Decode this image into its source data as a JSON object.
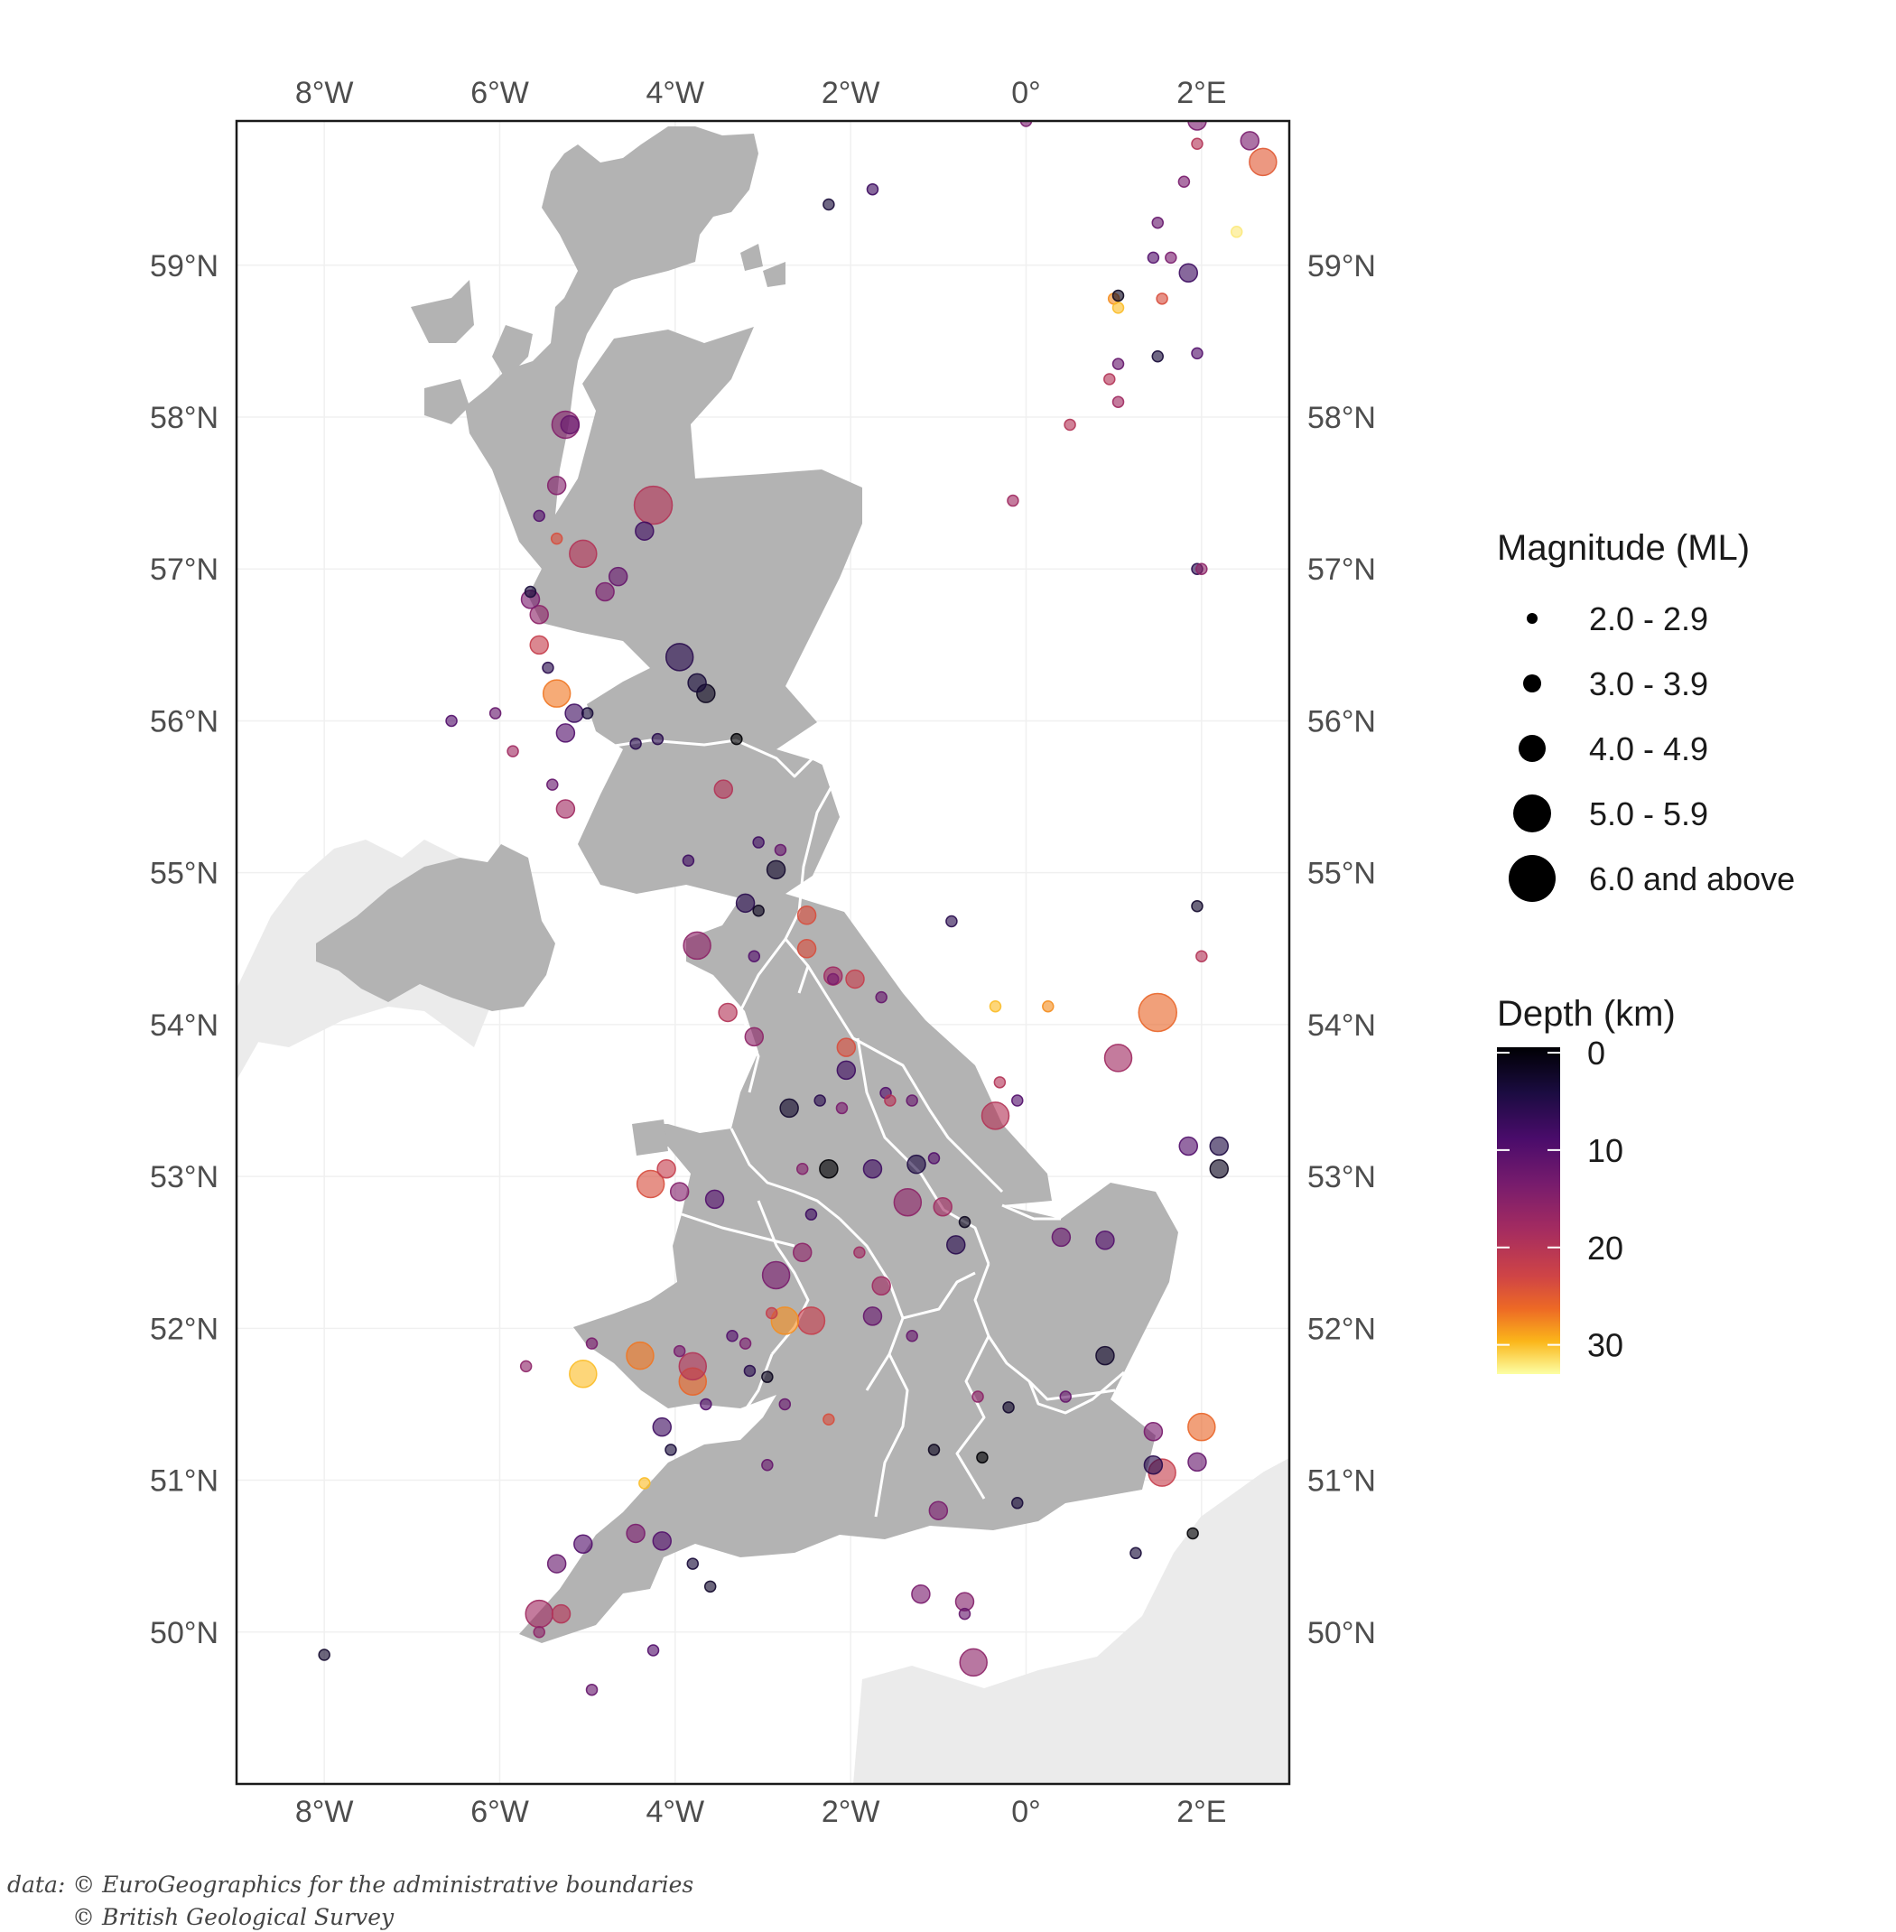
{
  "map": {
    "x_range": [
      -9.0,
      3.0
    ],
    "y_range": [
      49.0,
      59.95
    ],
    "x_ticks": [
      {
        "value": -8,
        "label": "8°W"
      },
      {
        "value": -6,
        "label": "6°W"
      },
      {
        "value": -4,
        "label": "4°W"
      },
      {
        "value": -2,
        "label": "2°W"
      },
      {
        "value": 0,
        "label": "0°"
      },
      {
        "value": 2,
        "label": "2°E"
      }
    ],
    "y_ticks": [
      {
        "value": 50,
        "label": "50°N"
      },
      {
        "value": 51,
        "label": "51°N"
      },
      {
        "value": 52,
        "label": "52°N"
      },
      {
        "value": 53,
        "label": "53°N"
      },
      {
        "value": 54,
        "label": "54°N"
      },
      {
        "value": 55,
        "label": "55°N"
      },
      {
        "value": 56,
        "label": "56°N"
      },
      {
        "value": 57,
        "label": "57°N"
      },
      {
        "value": 58,
        "label": "58°N"
      },
      {
        "value": 59,
        "label": "59°N"
      }
    ],
    "colors": {
      "uk_land": "#b3b3b3",
      "ireland_land": "#e8e8e8",
      "region_border": "#ffffff",
      "panel_border": "#1a1a1a",
      "grid": "#f0f0f0"
    }
  },
  "legend": {
    "magnitude_title": "Magnitude (ML)",
    "magnitude_classes": [
      "2.0 - 2.9",
      "3.0 - 3.9",
      "4.0 - 4.9",
      "5.0 - 5.9",
      "6.0 and above"
    ],
    "depth_title": "Depth (km)",
    "depth_ticks": [
      "0",
      "10",
      "20",
      "30"
    ],
    "depth_range": [
      0,
      33
    ],
    "colormap": "inferno"
  },
  "credits": {
    "line1": "data: © EuroGeographics for the administrative boundaries",
    "line2": "© British Geological Survey"
  },
  "chart_data": {
    "type": "scatter",
    "x_field": "longitude",
    "y_field": "latitude",
    "size_field": "magnitude_class",
    "color_field": "depth_km",
    "points": [
      [
        -5.25,
        57.95,
        3,
        15
      ],
      [
        -4.25,
        57.42,
        4,
        20
      ],
      [
        -4.35,
        57.25,
        2,
        8
      ],
      [
        -5.35,
        57.55,
        2,
        15
      ],
      [
        -5.05,
        57.1,
        3,
        20
      ],
      [
        -4.65,
        56.95,
        2,
        12
      ],
      [
        -4.8,
        56.85,
        2,
        14
      ],
      [
        -5.55,
        56.7,
        2,
        16
      ],
      [
        -5.65,
        56.8,
        2,
        14
      ],
      [
        -5.55,
        56.5,
        2,
        22
      ],
      [
        -5.35,
        56.18,
        3,
        27
      ],
      [
        -3.95,
        56.42,
        3,
        6
      ],
      [
        -3.65,
        56.18,
        2,
        2
      ],
      [
        -3.75,
        56.25,
        2,
        4
      ],
      [
        -5.15,
        56.05,
        2,
        8
      ],
      [
        -5.25,
        55.92,
        2,
        10
      ],
      [
        -3.45,
        55.55,
        2,
        20
      ],
      [
        -5.25,
        55.42,
        2,
        18
      ],
      [
        -6.05,
        56.05,
        1,
        12
      ],
      [
        -6.55,
        56.0,
        1,
        10
      ],
      [
        -5.85,
        55.8,
        1,
        18
      ],
      [
        -4.2,
        55.88,
        1,
        6
      ],
      [
        -3.3,
        55.88,
        1,
        0
      ],
      [
        -2.85,
        55.02,
        2,
        3
      ],
      [
        -3.85,
        55.08,
        1,
        8
      ],
      [
        -3.2,
        54.8,
        2,
        6
      ],
      [
        -3.75,
        54.52,
        3,
        16
      ],
      [
        -2.5,
        54.72,
        2,
        24
      ],
      [
        -2.5,
        54.5,
        2,
        24
      ],
      [
        -3.1,
        54.45,
        1,
        10
      ],
      [
        -3.4,
        54.08,
        2,
        20
      ],
      [
        -3.1,
        53.92,
        2,
        16
      ],
      [
        -2.2,
        54.32,
        2,
        18
      ],
      [
        -1.95,
        54.3,
        2,
        22
      ],
      [
        -1.65,
        54.18,
        1,
        12
      ],
      [
        -2.05,
        53.85,
        2,
        24
      ],
      [
        -2.05,
        53.7,
        2,
        8
      ],
      [
        -2.35,
        53.5,
        1,
        6
      ],
      [
        -2.7,
        53.45,
        2,
        3
      ],
      [
        -2.25,
        53.05,
        2,
        0
      ],
      [
        -1.75,
        53.05,
        2,
        8
      ],
      [
        -1.25,
        53.08,
        2,
        5
      ],
      [
        -1.05,
        53.12,
        1,
        10
      ],
      [
        -1.35,
        52.83,
        3,
        16
      ],
      [
        -0.95,
        52.8,
        2,
        18
      ],
      [
        -0.7,
        52.7,
        1,
        2
      ],
      [
        -0.8,
        52.55,
        2,
        6
      ],
      [
        -0.35,
        53.4,
        3,
        20
      ],
      [
        0.4,
        52.6,
        2,
        12
      ],
      [
        0.9,
        52.58,
        2,
        10
      ],
      [
        1.05,
        53.78,
        3,
        18
      ],
      [
        1.5,
        54.08,
        4,
        26
      ],
      [
        1.85,
        53.2,
        2,
        10
      ],
      [
        2.2,
        53.2,
        2,
        5
      ],
      [
        2.2,
        53.05,
        2,
        2
      ],
      [
        2.0,
        54.45,
        1,
        20
      ],
      [
        1.95,
        54.78,
        1,
        3
      ],
      [
        -4.28,
        52.95,
        3,
        24
      ],
      [
        -4.1,
        53.05,
        2,
        22
      ],
      [
        -3.95,
        52.9,
        2,
        15
      ],
      [
        -3.55,
        52.85,
        2,
        10
      ],
      [
        -2.85,
        52.35,
        3,
        14
      ],
      [
        -2.55,
        52.5,
        2,
        16
      ],
      [
        -2.45,
        52.05,
        3,
        22
      ],
      [
        -2.75,
        52.05,
        3,
        28
      ],
      [
        -1.65,
        52.28,
        2,
        18
      ],
      [
        -1.75,
        52.08,
        2,
        12
      ],
      [
        -3.35,
        51.95,
        1,
        10
      ],
      [
        -3.95,
        51.85,
        1,
        14
      ],
      [
        -4.4,
        51.82,
        3,
        27
      ],
      [
        -5.05,
        51.7,
        3,
        30
      ],
      [
        -3.8,
        51.65,
        3,
        26
      ],
      [
        -3.8,
        51.75,
        3,
        20
      ],
      [
        -3.15,
        51.72,
        1,
        6
      ],
      [
        -2.95,
        51.68,
        1,
        2
      ],
      [
        -2.75,
        51.5,
        1,
        12
      ],
      [
        -4.15,
        51.35,
        2,
        8
      ],
      [
        -4.05,
        51.2,
        1,
        4
      ],
      [
        -4.35,
        50.98,
        1,
        30
      ],
      [
        -2.95,
        51.1,
        1,
        12
      ],
      [
        -1.05,
        51.2,
        1,
        2
      ],
      [
        -0.5,
        51.15,
        1,
        0
      ],
      [
        -0.1,
        50.85,
        1,
        4
      ],
      [
        -1.0,
        50.8,
        2,
        14
      ],
      [
        -0.2,
        51.48,
        1,
        3
      ],
      [
        0.9,
        51.82,
        2,
        3
      ],
      [
        1.45,
        51.1,
        2,
        6
      ],
      [
        1.55,
        51.05,
        3,
        22
      ],
      [
        1.95,
        51.12,
        2,
        12
      ],
      [
        2.0,
        51.35,
        3,
        26
      ],
      [
        1.45,
        51.32,
        2,
        14
      ],
      [
        1.25,
        50.52,
        1,
        4
      ],
      [
        1.9,
        50.65,
        1,
        0
      ],
      [
        -5.05,
        50.58,
        2,
        10
      ],
      [
        -5.35,
        50.45,
        2,
        12
      ],
      [
        -4.45,
        50.65,
        2,
        14
      ],
      [
        -4.15,
        50.6,
        2,
        10
      ],
      [
        -3.8,
        50.45,
        1,
        4
      ],
      [
        -3.6,
        50.3,
        1,
        3
      ],
      [
        -5.55,
        50.12,
        3,
        18
      ],
      [
        -5.3,
        50.12,
        2,
        20
      ],
      [
        -5.55,
        50.0,
        1,
        16
      ],
      [
        -4.25,
        49.88,
        1,
        10
      ],
      [
        -4.95,
        49.62,
        1,
        12
      ],
      [
        -8.0,
        49.85,
        1,
        3
      ],
      [
        -0.6,
        49.8,
        3,
        16
      ],
      [
        -0.7,
        50.2,
        2,
        15
      ],
      [
        -1.2,
        50.25,
        2,
        14
      ],
      [
        -0.7,
        50.12,
        1,
        12
      ],
      [
        0.5,
        57.95,
        1,
        20
      ],
      [
        -0.15,
        57.45,
        1,
        18
      ],
      [
        1.95,
        57.0,
        1,
        6
      ],
      [
        2.0,
        57.0,
        1,
        16
      ],
      [
        1.5,
        58.4,
        1,
        4
      ],
      [
        1.95,
        58.42,
        1,
        10
      ],
      [
        0.95,
        58.25,
        1,
        20
      ],
      [
        1.05,
        58.1,
        1,
        18
      ],
      [
        1.05,
        58.35,
        1,
        12
      ],
      [
        1.0,
        58.78,
        1,
        28
      ],
      [
        1.05,
        58.72,
        1,
        30
      ],
      [
        1.05,
        58.8,
        1,
        2
      ],
      [
        1.55,
        58.78,
        1,
        24
      ],
      [
        1.85,
        58.95,
        2,
        8
      ],
      [
        2.4,
        59.22,
        1,
        32
      ],
      [
        1.65,
        59.05,
        1,
        14
      ],
      [
        1.45,
        59.05,
        1,
        10
      ],
      [
        1.5,
        59.28,
        1,
        12
      ],
      [
        1.8,
        59.55,
        1,
        14
      ],
      [
        1.95,
        59.95,
        2,
        14
      ],
      [
        2.55,
        59.82,
        2,
        14
      ],
      [
        2.7,
        59.68,
        3,
        25
      ],
      [
        1.95,
        59.8,
        1,
        20
      ],
      [
        -2.25,
        59.4,
        1,
        4
      ],
      [
        -1.75,
        59.5,
        1,
        8
      ],
      [
        0.0,
        59.95,
        1,
        14
      ],
      [
        -5.2,
        57.95,
        2,
        12
      ],
      [
        -5.55,
        57.35,
        1,
        10
      ],
      [
        -5.35,
        57.2,
        1,
        24
      ],
      [
        -5.65,
        56.85,
        1,
        4
      ],
      [
        -5.45,
        56.35,
        1,
        6
      ],
      [
        -5.0,
        56.05,
        1,
        4
      ],
      [
        -4.45,
        55.85,
        1,
        6
      ],
      [
        -5.4,
        55.58,
        1,
        12
      ],
      [
        -3.05,
        55.2,
        1,
        8
      ],
      [
        -2.8,
        55.15,
        1,
        12
      ],
      [
        -3.05,
        54.75,
        1,
        2
      ],
      [
        -2.2,
        54.3,
        1,
        14
      ],
      [
        -1.6,
        53.55,
        1,
        10
      ],
      [
        -1.55,
        53.5,
        1,
        20
      ],
      [
        -2.1,
        53.45,
        1,
        14
      ],
      [
        -1.3,
        53.5,
        1,
        12
      ],
      [
        -2.55,
        53.05,
        1,
        15
      ],
      [
        -2.45,
        52.75,
        1,
        8
      ],
      [
        -1.9,
        52.5,
        1,
        18
      ],
      [
        -2.9,
        52.1,
        1,
        22
      ],
      [
        -3.2,
        51.9,
        1,
        14
      ],
      [
        -3.65,
        51.5,
        1,
        10
      ],
      [
        -5.7,
        51.75,
        1,
        16
      ],
      [
        -4.95,
        51.9,
        1,
        14
      ],
      [
        -2.25,
        51.4,
        1,
        24
      ],
      [
        -1.3,
        51.95,
        1,
        12
      ],
      [
        -0.55,
        51.55,
        1,
        16
      ],
      [
        0.45,
        51.55,
        1,
        12
      ],
      [
        -0.85,
        54.68,
        1,
        6
      ],
      [
        -0.35,
        54.12,
        1,
        30
      ],
      [
        0.25,
        54.12,
        1,
        28
      ],
      [
        -0.3,
        53.62,
        1,
        20
      ],
      [
        -0.1,
        53.5,
        1,
        10
      ]
    ]
  }
}
